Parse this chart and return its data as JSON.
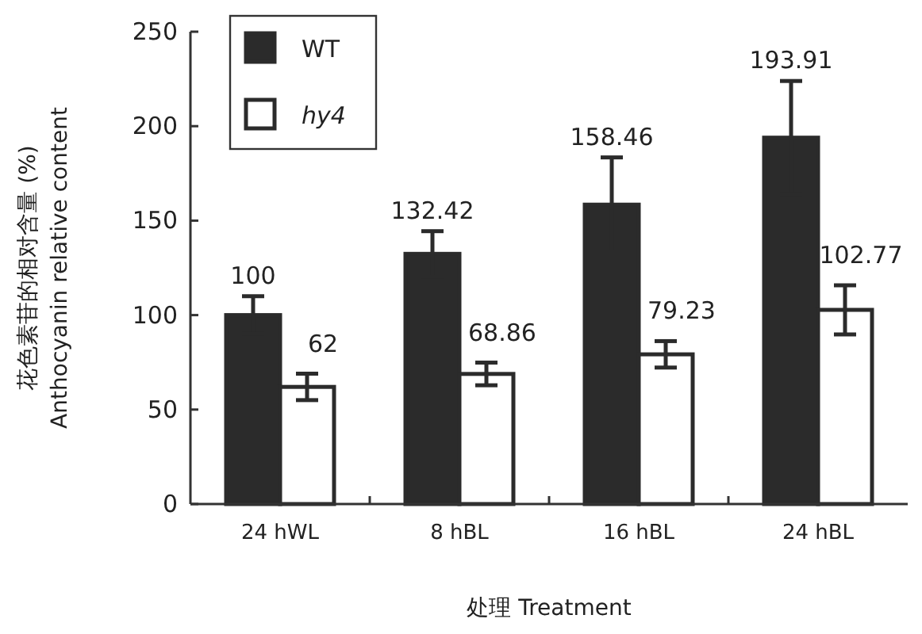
{
  "chart_data": {
    "type": "bar",
    "xlabel": "处理 Treatment",
    "ylabel": "花色素苷的相对含量 (%)\nAnthocyanin relative content",
    "categories": [
      "24 hWL",
      "8 hBL",
      "16 hBL",
      "24 hBL"
    ],
    "series": [
      {
        "name": "WT",
        "color": "#2b2b2b",
        "values": [
          100,
          132.42,
          158.46,
          193.91
        ],
        "errors": [
          10,
          12,
          25,
          30
        ]
      },
      {
        "name": "hy4",
        "color": "#ffffff",
        "values": [
          62,
          68.86,
          79.23,
          102.77
        ],
        "errors": [
          7,
          6,
          7,
          13
        ]
      }
    ],
    "ylim": [
      0,
      250
    ],
    "yticks": [
      0,
      50,
      100,
      150,
      200,
      250
    ],
    "data_labels": true,
    "legend": "top left"
  }
}
